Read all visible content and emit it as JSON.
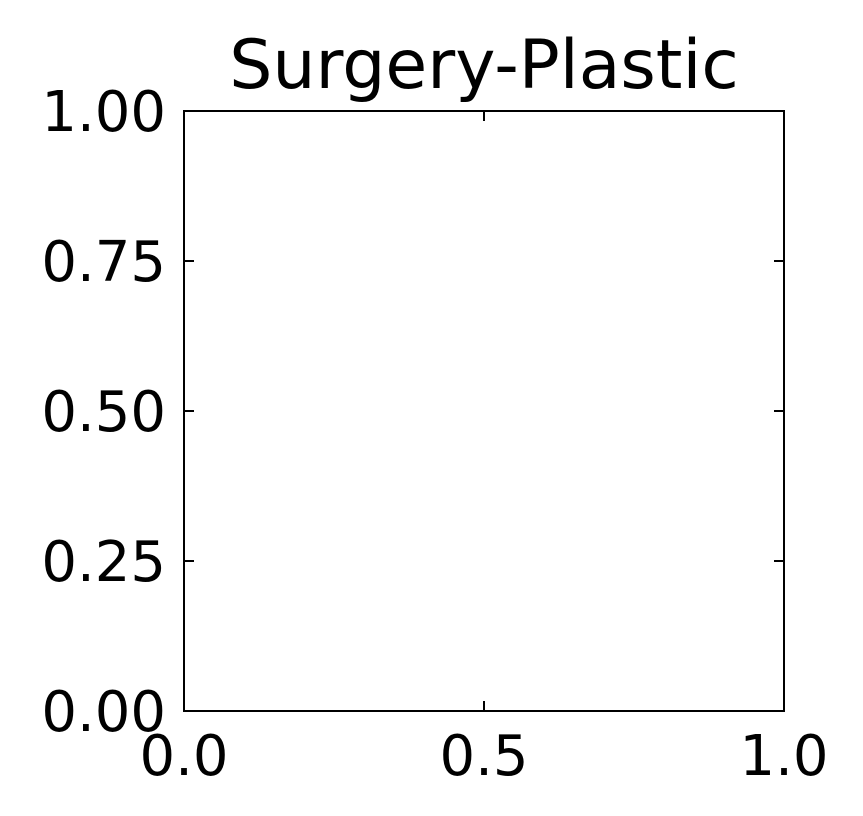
{
  "chart_data": {
    "type": "scatter",
    "title": "Surgery-Plastic",
    "xlabel": "",
    "ylabel": "",
    "xlim": [
      0,
      1
    ],
    "ylim": [
      0,
      1
    ],
    "x_ticks": [
      0,
      0.5,
      1
    ],
    "x_tick_labels": [
      "0.0",
      "0.5",
      "1.0"
    ],
    "y_ticks": [
      0,
      0.25,
      0.5,
      0.75,
      1
    ],
    "y_tick_labels": [
      "0.00",
      "0.25",
      "0.50",
      "0.75",
      "1.00"
    ],
    "tick_direction": "in",
    "grid": false,
    "series": []
  },
  "colors": {
    "background": "#ffffff",
    "axis": "#000000",
    "text": "#000000"
  }
}
